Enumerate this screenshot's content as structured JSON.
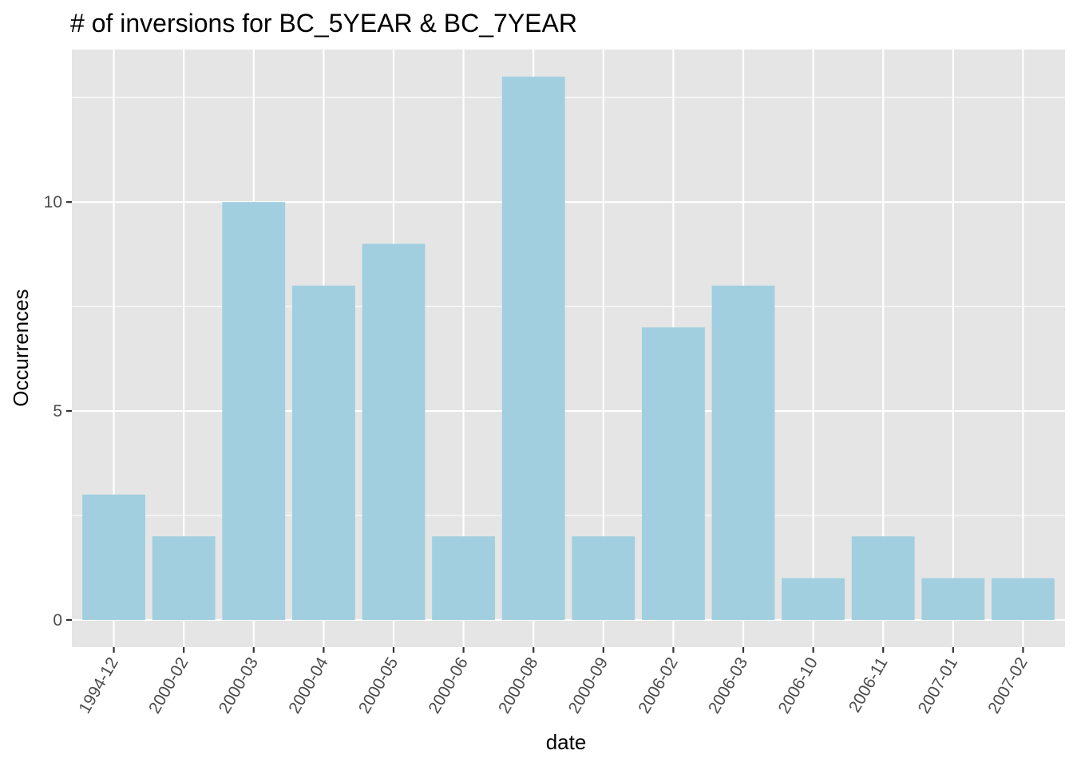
{
  "chart_data": {
    "type": "bar",
    "title": "# of inversions for BC_5YEAR & BC_7YEAR",
    "xlabel": "date",
    "ylabel": "Occurrences",
    "categories": [
      "1994-12",
      "2000-02",
      "2000-03",
      "2000-04",
      "2000-05",
      "2000-06",
      "2000-08",
      "2000-09",
      "2006-02",
      "2006-03",
      "2006-10",
      "2006-11",
      "2007-01",
      "2007-02"
    ],
    "values": [
      3,
      2,
      10,
      8,
      9,
      2,
      13,
      2,
      7,
      8,
      1,
      2,
      1,
      1
    ],
    "ylim": [
      -0.65,
      13.65
    ],
    "yticks": [
      0,
      5,
      10
    ],
    "grid": true,
    "legend": "none",
    "colors": {
      "bar": "#a1cfe0",
      "panel": "#e5e5e5",
      "grid": "#ffffff"
    }
  }
}
